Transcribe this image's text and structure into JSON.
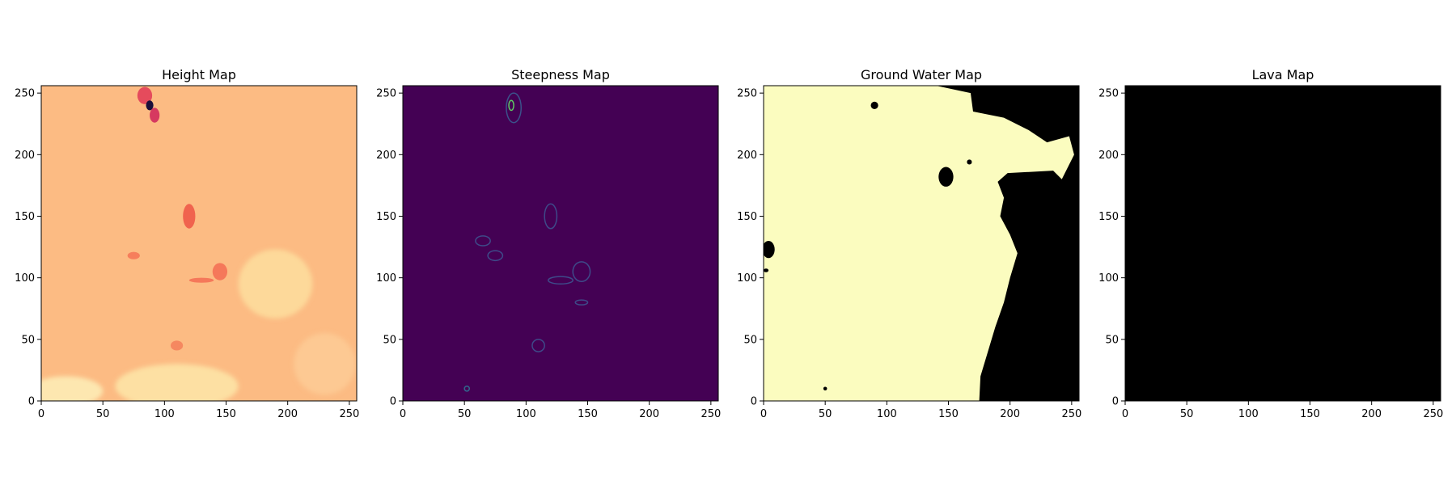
{
  "chart_data": [
    {
      "type": "heatmap",
      "id": "height",
      "title": "Height Map",
      "xlim": [
        0,
        256
      ],
      "ylim": [
        0,
        256
      ],
      "xticks": [
        0,
        50,
        100,
        150,
        200,
        250
      ],
      "yticks": [
        0,
        50,
        100,
        150,
        200,
        250
      ],
      "colormap": "magma",
      "background": "#fcbb83",
      "features": [
        {
          "kind": "pale",
          "x": 190,
          "y": 95,
          "rx": 30,
          "ry": 28,
          "color": "#fdd99a"
        },
        {
          "kind": "pale",
          "x": 110,
          "y": 12,
          "rx": 50,
          "ry": 18,
          "color": "#fde0a3"
        },
        {
          "kind": "pale",
          "x": 20,
          "y": 8,
          "rx": 30,
          "ry": 12,
          "color": "#fde7b0"
        },
        {
          "kind": "pale",
          "x": 230,
          "y": 30,
          "rx": 25,
          "ry": 25,
          "color": "#fdc993"
        },
        {
          "kind": "dark",
          "x": 120,
          "y": 150,
          "rx": 5,
          "ry": 10,
          "color": "#f0634e"
        },
        {
          "kind": "dark",
          "x": 84,
          "y": 248,
          "rx": 6,
          "ry": 7,
          "color": "#e54b5c"
        },
        {
          "kind": "dark",
          "x": 88,
          "y": 240,
          "rx": 3,
          "ry": 4,
          "color": "#1c0f3a"
        },
        {
          "kind": "dark",
          "x": 92,
          "y": 232,
          "rx": 4,
          "ry": 6,
          "color": "#d63a60"
        },
        {
          "kind": "dark",
          "x": 145,
          "y": 105,
          "rx": 6,
          "ry": 7,
          "color": "#f5785a"
        },
        {
          "kind": "dark",
          "x": 130,
          "y": 98,
          "rx": 10,
          "ry": 2,
          "color": "#f5785a"
        },
        {
          "kind": "dark",
          "x": 75,
          "y": 118,
          "rx": 5,
          "ry": 3,
          "color": "#f67e5c"
        },
        {
          "kind": "dark",
          "x": 110,
          "y": 45,
          "rx": 5,
          "ry": 4,
          "color": "#f58860"
        }
      ]
    },
    {
      "type": "heatmap",
      "id": "steepness",
      "title": "Steepness Map",
      "xlim": [
        0,
        256
      ],
      "ylim": [
        0,
        256
      ],
      "xticks": [
        0,
        50,
        100,
        150,
        200,
        250
      ],
      "yticks": [
        0,
        50,
        100,
        150,
        200,
        250
      ],
      "colormap": "viridis",
      "background": "#440154",
      "features": [
        {
          "kind": "ring",
          "x": 88,
          "y": 240,
          "rx": 2,
          "ry": 4,
          "color": "#5ec962"
        },
        {
          "kind": "ring",
          "x": 90,
          "y": 238,
          "rx": 6,
          "ry": 12,
          "color": "#3b528b"
        },
        {
          "kind": "ring",
          "x": 120,
          "y": 150,
          "rx": 5,
          "ry": 10,
          "color": "#3e4a89"
        },
        {
          "kind": "ring",
          "x": 145,
          "y": 105,
          "rx": 7,
          "ry": 8,
          "color": "#3e4a89"
        },
        {
          "kind": "ring",
          "x": 128,
          "y": 98,
          "rx": 10,
          "ry": 3,
          "color": "#3e4a89"
        },
        {
          "kind": "ring",
          "x": 65,
          "y": 130,
          "rx": 6,
          "ry": 4,
          "color": "#3e4a89"
        },
        {
          "kind": "ring",
          "x": 75,
          "y": 118,
          "rx": 6,
          "ry": 4,
          "color": "#3e4a89"
        },
        {
          "kind": "ring",
          "x": 110,
          "y": 45,
          "rx": 5,
          "ry": 5,
          "color": "#3e4a89"
        },
        {
          "kind": "ring",
          "x": 145,
          "y": 80,
          "rx": 5,
          "ry": 2,
          "color": "#3e4a89"
        },
        {
          "kind": "ring",
          "x": 52,
          "y": 10,
          "rx": 2,
          "ry": 2,
          "color": "#31688e"
        }
      ]
    },
    {
      "type": "heatmap",
      "id": "groundwater",
      "title": "Ground Water Map",
      "xlim": [
        0,
        256
      ],
      "ylim": [
        0,
        256
      ],
      "xticks": [
        0,
        50,
        100,
        150,
        200,
        250
      ],
      "yticks": [
        0,
        50,
        100,
        150,
        200,
        250
      ],
      "colormap": "magma",
      "background": "#fbfcbf",
      "dry_color": "#000000",
      "dry_region": [
        [
          256,
          0
        ],
        [
          175,
          0
        ],
        [
          176,
          20
        ],
        [
          182,
          40
        ],
        [
          188,
          60
        ],
        [
          195,
          80
        ],
        [
          200,
          100
        ],
        [
          206,
          120
        ],
        [
          200,
          135
        ],
        [
          192,
          150
        ],
        [
          195,
          165
        ],
        [
          190,
          178
        ],
        [
          198,
          185
        ],
        [
          235,
          187
        ],
        [
          242,
          180
        ],
        [
          252,
          200
        ],
        [
          248,
          215
        ],
        [
          230,
          210
        ],
        [
          215,
          220
        ],
        [
          195,
          230
        ],
        [
          170,
          235
        ],
        [
          168,
          250
        ],
        [
          140,
          256
        ],
        [
          250,
          256
        ],
        [
          256,
          256
        ]
      ],
      "dry_spots": [
        {
          "x": 148,
          "y": 182,
          "rx": 6,
          "ry": 8
        },
        {
          "x": 4,
          "y": 123,
          "rx": 5,
          "ry": 7
        },
        {
          "x": 90,
          "y": 240,
          "rx": 3,
          "ry": 3
        },
        {
          "x": 50,
          "y": 10,
          "rx": 1.5,
          "ry": 1.5
        },
        {
          "x": 2,
          "y": 106,
          "rx": 2,
          "ry": 1.5
        },
        {
          "x": 167,
          "y": 194,
          "rx": 2,
          "ry": 2
        }
      ]
    },
    {
      "type": "heatmap",
      "id": "lava",
      "title": "Lava Map",
      "xlim": [
        0,
        256
      ],
      "ylim": [
        0,
        256
      ],
      "xticks": [
        0,
        50,
        100,
        150,
        200,
        250
      ],
      "yticks": [
        0,
        50,
        100,
        150,
        200,
        250
      ],
      "colormap": "magma",
      "background": "#000000",
      "features": []
    }
  ]
}
